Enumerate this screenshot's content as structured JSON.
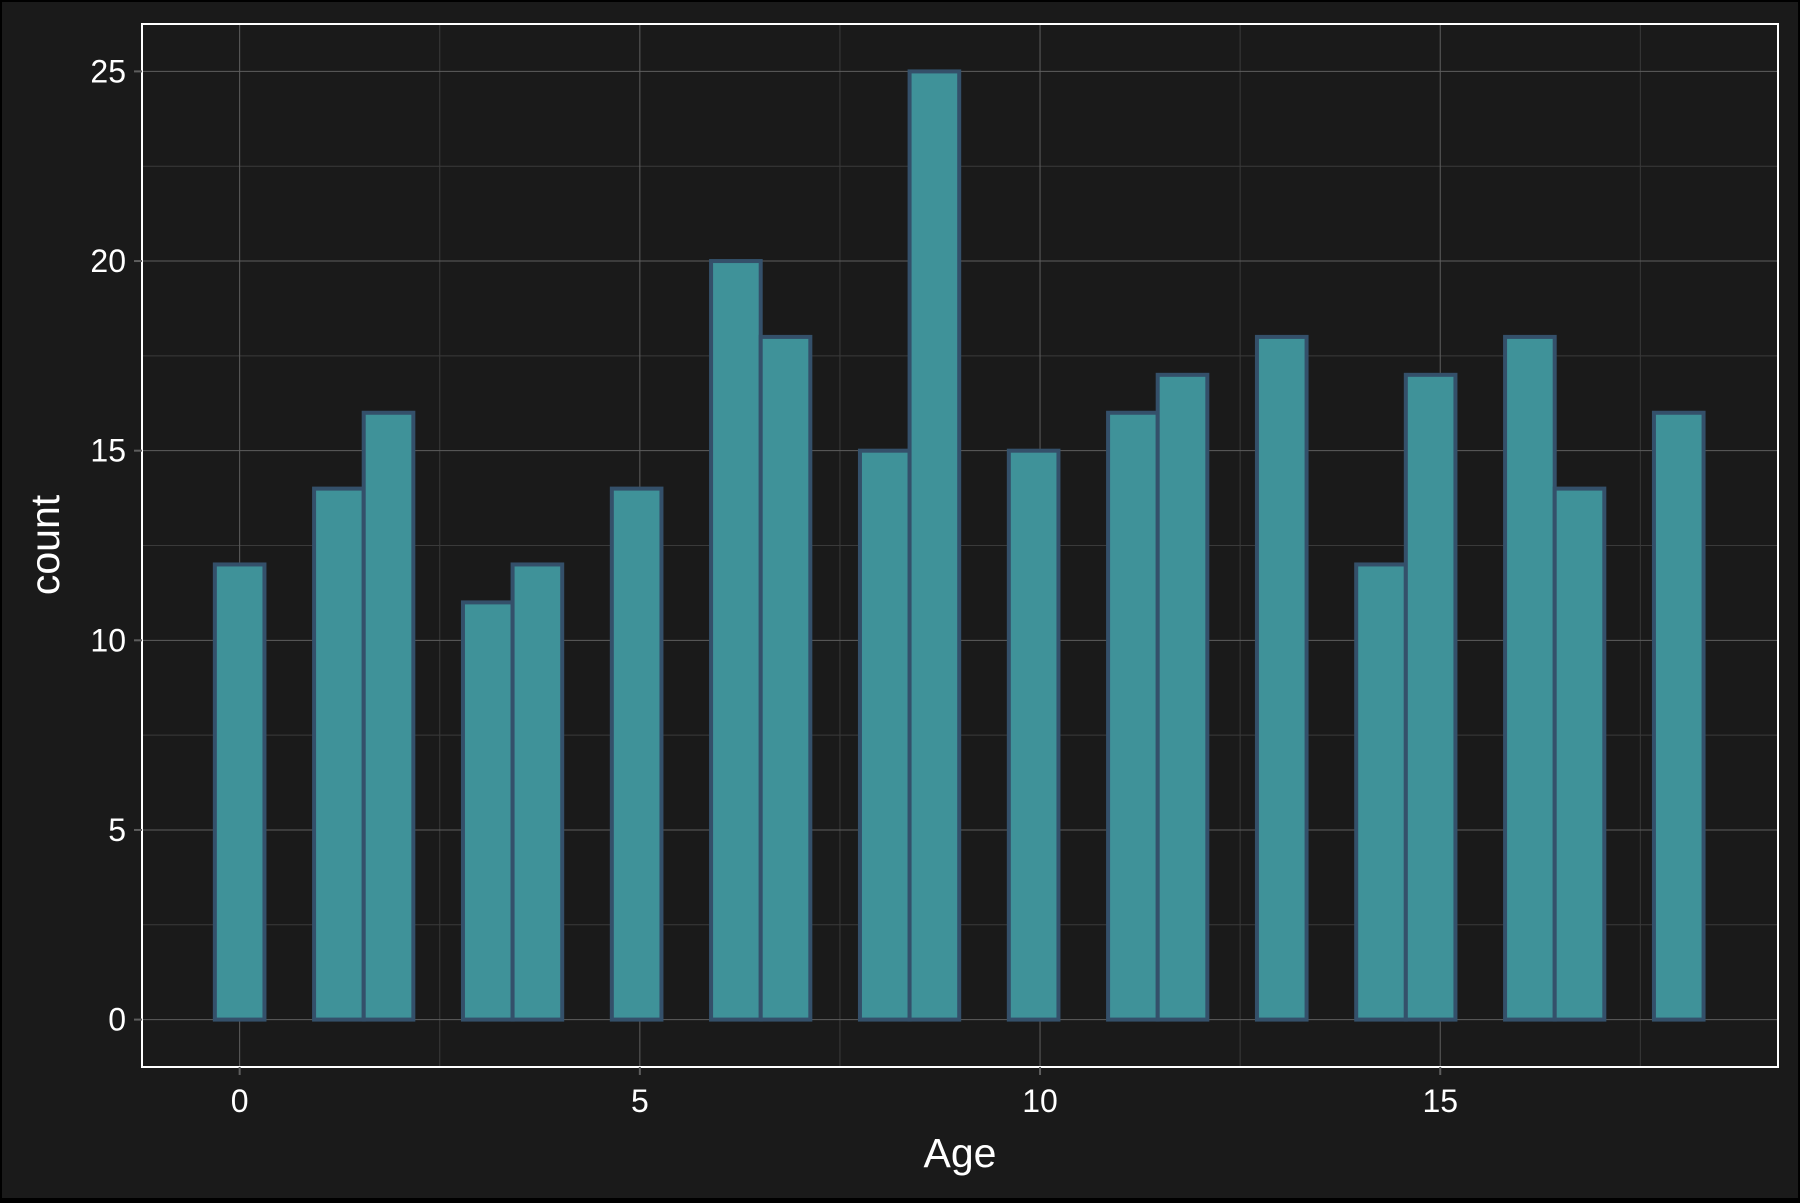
{
  "chart_data": {
    "type": "bar",
    "xlabel": "Age",
    "ylabel": "count",
    "bin_width": 0.62,
    "x": [
      0.0,
      0.62,
      1.24,
      1.86,
      2.48,
      3.1,
      3.72,
      4.34,
      4.96,
      5.58,
      6.2,
      6.82,
      7.44,
      8.06,
      8.68,
      9.3,
      9.92,
      10.54,
      11.16,
      11.78,
      12.4,
      13.02,
      13.64,
      14.26,
      14.88,
      15.5,
      16.12,
      16.74,
      17.36,
      17.98
    ],
    "values": [
      12,
      0,
      14,
      16,
      0,
      11,
      12,
      0,
      14,
      0,
      20,
      18,
      0,
      15,
      25,
      0,
      15,
      0,
      16,
      17,
      0,
      18,
      0,
      12,
      17,
      0,
      18,
      14,
      0,
      16
    ],
    "xlim": [
      -1.22,
      19.22
    ],
    "ylim": [
      -1.25,
      26.25
    ],
    "x_ticks": [
      0,
      5,
      10,
      15
    ],
    "y_ticks": [
      0,
      5,
      10,
      15,
      20,
      25
    ],
    "grid": true,
    "legend": "none",
    "colors": {
      "background": "#1a1a1a",
      "panel_border": "#ffffff",
      "grid_major": "#5e5e5e",
      "grid_minor": "#3a3a3a",
      "bar_fill": "#3f9299",
      "bar_outline": "#34506a",
      "text": "#ffffff"
    }
  }
}
